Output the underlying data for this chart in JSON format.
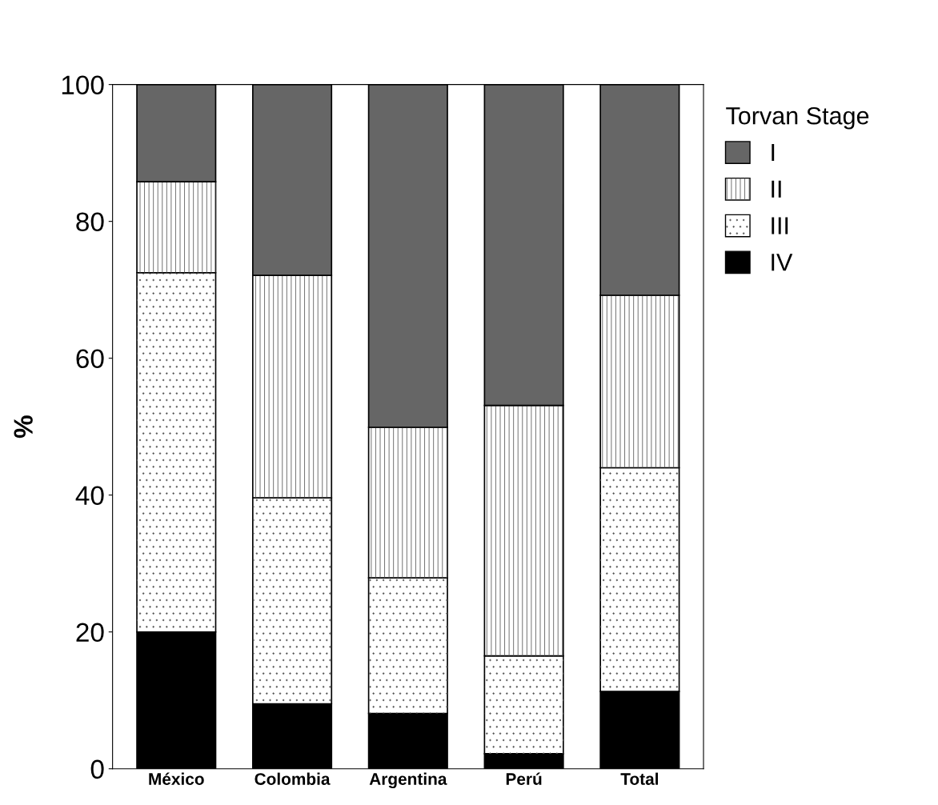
{
  "chart_data": {
    "type": "bar",
    "stacked": true,
    "ylabel": "%",
    "legend_title": "Torvan Stage",
    "legend": "right",
    "categories": [
      "México",
      "Colombia",
      "Argentina",
      "Perú",
      "Total"
    ],
    "series": [
      {
        "name": "IV",
        "color": "#000000",
        "values": [
          20.0,
          9.5,
          8.1,
          2.2,
          11.3
        ]
      },
      {
        "name": "III",
        "color": "#ffffff",
        "values": [
          52.5,
          30.1,
          19.8,
          14.3,
          32.7
        ]
      },
      {
        "name": "II",
        "color": "#ffffff",
        "values": [
          13.3,
          32.5,
          22.0,
          36.6,
          25.2
        ]
      },
      {
        "name": "I",
        "color": "#666666",
        "values": [
          14.2,
          27.9,
          50.1,
          46.9,
          30.8
        ]
      }
    ],
    "ylim": [
      0,
      100
    ],
    "yticks": [
      0,
      20,
      40,
      60,
      80,
      100
    ],
    "grid": false
  }
}
